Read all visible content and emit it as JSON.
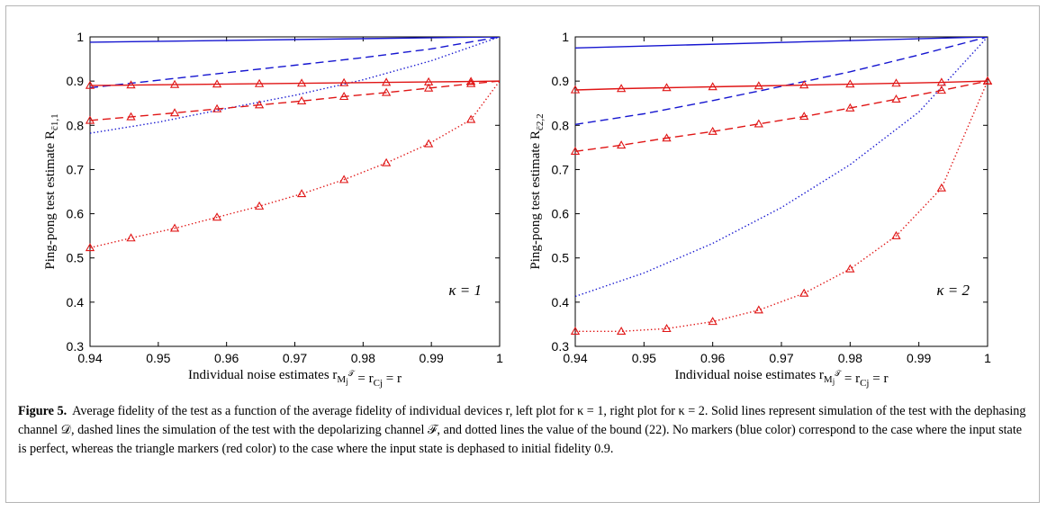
{
  "plots": [
    {
      "ylabel": "Ping-pong test estimate R",
      "ylabel_sub": "c̄1,1",
      "xlabel": "Individual noise estimates r",
      "xlabel_tail": " = r",
      "kappa_label": "κ = 1",
      "x_ticks": [
        "0.94",
        "0.95",
        "0.96",
        "0.97",
        "0.98",
        "0.99",
        "1"
      ],
      "y_ticks": [
        "0.3",
        "0.4",
        "0.5",
        "0.6",
        "0.7",
        "0.8",
        "0.9",
        "1"
      ],
      "xlim": [
        0.94,
        1.0
      ],
      "ylim": [
        0.3,
        1.0
      ],
      "marker_x": [
        0.94,
        0.946,
        0.9524,
        0.9586,
        0.9648,
        0.971,
        0.9772,
        0.9834,
        0.9896,
        0.9958
      ],
      "series": [
        {
          "color": "#1515d0",
          "style": "solid",
          "markers": false,
          "x": [
            0.94,
            1.0
          ],
          "y": [
            0.988,
            1.0
          ]
        },
        {
          "color": "#1515d0",
          "style": "dashed",
          "markers": false,
          "x": [
            0.94,
            0.95,
            0.96,
            0.97,
            0.98,
            0.99,
            1.0
          ],
          "y": [
            0.885,
            0.902,
            0.919,
            0.936,
            0.953,
            0.973,
            1.0
          ]
        },
        {
          "color": "#1515d0",
          "style": "dotted",
          "markers": false,
          "x": [
            0.94,
            0.95,
            0.96,
            0.97,
            0.98,
            0.99,
            1.0
          ],
          "y": [
            0.782,
            0.807,
            0.838,
            0.868,
            0.903,
            0.946,
            1.0
          ]
        },
        {
          "color": "#e01515",
          "style": "solid",
          "markers": true,
          "x": [
            0.94,
            0.946,
            0.9524,
            0.9586,
            0.9648,
            0.971,
            0.9772,
            0.9834,
            0.9896,
            0.9958,
            1.0
          ],
          "y": [
            0.89,
            0.891,
            0.892,
            0.893,
            0.894,
            0.895,
            0.896,
            0.897,
            0.898,
            0.899,
            0.9
          ]
        },
        {
          "color": "#e01515",
          "style": "dashed",
          "markers": true,
          "x": [
            0.94,
            0.946,
            0.9524,
            0.9586,
            0.9648,
            0.971,
            0.9772,
            0.9834,
            0.9896,
            0.9958,
            1.0
          ],
          "y": [
            0.811,
            0.819,
            0.828,
            0.837,
            0.846,
            0.855,
            0.865,
            0.874,
            0.884,
            0.894,
            0.9
          ]
        },
        {
          "color": "#e01515",
          "style": "dotted",
          "markers": true,
          "x": [
            0.94,
            0.946,
            0.9524,
            0.9586,
            0.9648,
            0.971,
            0.9772,
            0.9834,
            0.9896,
            0.9958,
            1.0
          ],
          "y": [
            0.523,
            0.545,
            0.567,
            0.592,
            0.617,
            0.645,
            0.677,
            0.715,
            0.758,
            0.813,
            0.9
          ]
        }
      ]
    },
    {
      "ylabel": "Ping-pong test estimate R",
      "ylabel_sub": "c̄2,2",
      "xlabel": "Individual noise estimates r",
      "xlabel_tail": " = r",
      "kappa_label": "κ = 2",
      "x_ticks": [
        "0.94",
        "0.95",
        "0.96",
        "0.97",
        "0.98",
        "0.99",
        "1"
      ],
      "y_ticks": [
        "0.3",
        "0.4",
        "0.5",
        "0.6",
        "0.7",
        "0.8",
        "0.9",
        "1"
      ],
      "xlim": [
        0.94,
        1.0
      ],
      "ylim": [
        0.3,
        1.0
      ],
      "marker_x": [
        0.94,
        0.9467,
        0.9533,
        0.96,
        0.9667,
        0.9733,
        0.98,
        0.9867,
        0.9933,
        1.0
      ],
      "series": [
        {
          "color": "#1515d0",
          "style": "solid",
          "markers": false,
          "x": [
            0.94,
            1.0
          ],
          "y": [
            0.975,
            1.0
          ]
        },
        {
          "color": "#1515d0",
          "style": "dashed",
          "markers": false,
          "x": [
            0.94,
            0.95,
            0.96,
            0.97,
            0.98,
            0.99,
            1.0
          ],
          "y": [
            0.802,
            0.826,
            0.856,
            0.888,
            0.921,
            0.959,
            1.0
          ]
        },
        {
          "color": "#1515d0",
          "style": "dotted",
          "markers": false,
          "x": [
            0.94,
            0.95,
            0.96,
            0.97,
            0.98,
            0.99,
            1.0
          ],
          "y": [
            0.413,
            0.466,
            0.533,
            0.614,
            0.711,
            0.83,
            1.0
          ]
        },
        {
          "color": "#e01515",
          "style": "solid",
          "markers": true,
          "x": [
            0.94,
            0.9467,
            0.9533,
            0.96,
            0.9667,
            0.9733,
            0.98,
            0.9867,
            0.9933,
            1.0
          ],
          "y": [
            0.88,
            0.883,
            0.885,
            0.887,
            0.889,
            0.891,
            0.893,
            0.895,
            0.897,
            0.9
          ]
        },
        {
          "color": "#e01515",
          "style": "dashed",
          "markers": true,
          "x": [
            0.94,
            0.9467,
            0.9533,
            0.96,
            0.9667,
            0.9733,
            0.98,
            0.9867,
            0.9933,
            1.0
          ],
          "y": [
            0.741,
            0.755,
            0.771,
            0.786,
            0.803,
            0.82,
            0.839,
            0.859,
            0.879,
            0.9
          ]
        },
        {
          "color": "#e01515",
          "style": "dotted",
          "markers": true,
          "x": [
            0.94,
            0.9467,
            0.9533,
            0.96,
            0.9667,
            0.9733,
            0.98,
            0.9867,
            0.9933,
            1.0
          ],
          "y": [
            0.334,
            0.334,
            0.34,
            0.356,
            0.382,
            0.42,
            0.475,
            0.55,
            0.658,
            0.9
          ]
        }
      ]
    }
  ],
  "caption": {
    "label": "Figure 5.",
    "text": "Average fidelity of the test as a function of the average fidelity of individual devices r, left plot for κ = 1, right plot for κ = 2. Solid lines represent simulation of the test with the dephasing channel 𝒟, dashed lines the simulation of the test with the depolarizing channel ℱ, and dotted lines the value of the bound (22). No markers (blue color) correspond to the case where the input state is perfect, whereas the triangle markers (red color) to the case where the input state is dephased to initial fidelity 0.9."
  },
  "colors": {
    "blue": "#1515d0",
    "red": "#e01515",
    "frame": "#b5b5b5"
  }
}
